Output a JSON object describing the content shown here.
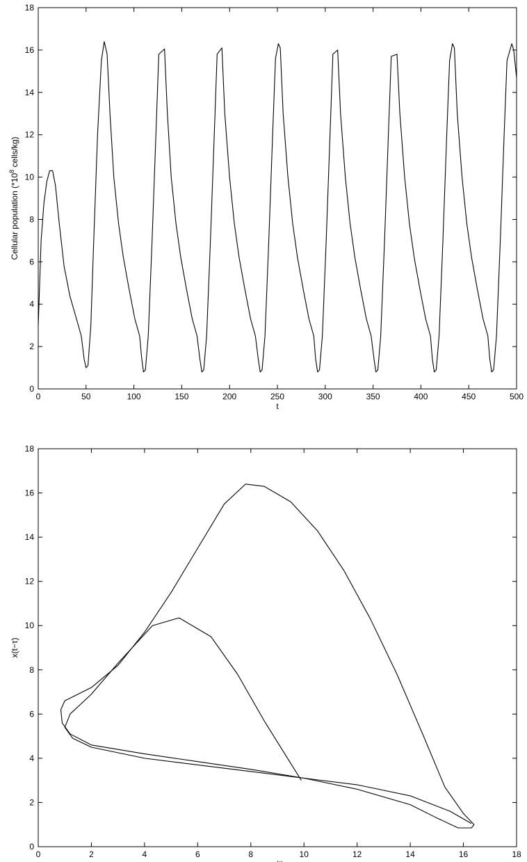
{
  "chart_data": [
    {
      "type": "line",
      "xlabel": "t",
      "ylabel_parts": [
        "Cellular population (*10",
        "8",
        " cells/kg)"
      ],
      "xlim": [
        0,
        500
      ],
      "ylim": [
        0,
        18
      ],
      "xticks": [
        0,
        50,
        100,
        150,
        200,
        250,
        300,
        350,
        400,
        450,
        500
      ],
      "yticks": [
        0,
        2,
        4,
        6,
        8,
        10,
        12,
        14,
        16,
        18
      ],
      "x": [
        0,
        3,
        6,
        9,
        12,
        15,
        18,
        22,
        27,
        33,
        40,
        45,
        48,
        50,
        52,
        55,
        58,
        62,
        66,
        69,
        72,
        75,
        79,
        84,
        89,
        95,
        101,
        106,
        108,
        110,
        112,
        115,
        119,
        123,
        126,
        132,
        135,
        139,
        144,
        149,
        155,
        161,
        166,
        169,
        171,
        173,
        176,
        180,
        184,
        187,
        192,
        195,
        200,
        205,
        210,
        216,
        222,
        227,
        230,
        232,
        234,
        237,
        241,
        245,
        248,
        251,
        253,
        256,
        261,
        266,
        271,
        277,
        283,
        288,
        290,
        292,
        294,
        297,
        301,
        305,
        308,
        313,
        316,
        321,
        326,
        331,
        337,
        343,
        348,
        351,
        353,
        355,
        358,
        362,
        366,
        369,
        375,
        378,
        383,
        388,
        393,
        399,
        405,
        410,
        412,
        414,
        416,
        419,
        423,
        427,
        430,
        433,
        435,
        438,
        443,
        448,
        453,
        459,
        465,
        470,
        472,
        474,
        476,
        479,
        483,
        487,
        490,
        495,
        497,
        500
      ],
      "series": [
        {
          "color": "#000000",
          "values": [
            3,
            7,
            8.8,
            9.8,
            10.3,
            10.3,
            9.6,
            7.8,
            5.8,
            4.4,
            3.3,
            2.5,
            1.4,
            1.0,
            1.1,
            3,
            7,
            12,
            15.5,
            16.4,
            15.8,
            13,
            10,
            7.8,
            6.2,
            4.7,
            3.3,
            2.5,
            1.5,
            0.8,
            0.9,
            2.5,
            7,
            12,
            15.8,
            16.05,
            13,
            10,
            7.8,
            6.2,
            4.7,
            3.3,
            2.5,
            1.4,
            0.8,
            0.9,
            2.5,
            7,
            12,
            15.8,
            16.1,
            13,
            10,
            7.8,
            6.2,
            4.7,
            3.3,
            2.5,
            1.4,
            0.8,
            0.9,
            2.5,
            7,
            12,
            15.6,
            16.3,
            16.1,
            13,
            10,
            7.8,
            6.2,
            4.7,
            3.3,
            2.5,
            1.4,
            0.8,
            0.9,
            2.5,
            7,
            12,
            15.8,
            16.0,
            13,
            10,
            7.8,
            6.2,
            4.7,
            3.3,
            2.5,
            1.4,
            0.8,
            0.9,
            2.5,
            7,
            12,
            15.7,
            15.8,
            13,
            10,
            7.8,
            6.2,
            4.7,
            3.3,
            2.5,
            1.4,
            0.8,
            0.9,
            2.5,
            7,
            12,
            15.5,
            16.3,
            16.1,
            13,
            10,
            7.8,
            6.2,
            4.7,
            3.3,
            2.5,
            1.4,
            0.8,
            0.9,
            2.5,
            7,
            12,
            15.5,
            16.3,
            16,
            14.7
          ]
        }
      ]
    },
    {
      "type": "line",
      "xlabel": "x(t)",
      "ylabel": "x(t−τ)",
      "xlim": [
        0,
        18
      ],
      "ylim": [
        0,
        18
      ],
      "xticks": [
        0,
        2,
        4,
        6,
        8,
        10,
        12,
        14,
        16,
        18
      ],
      "yticks": [
        0,
        2,
        4,
        6,
        8,
        10,
        12,
        14,
        16,
        18
      ],
      "series": [
        {
          "color": "#000000",
          "x": [
            9.9,
            8.5,
            7.5,
            6.5,
            5.3,
            4.3,
            3,
            2,
            1.2,
            1.0,
            1.3,
            2,
            4,
            6,
            8,
            10,
            12,
            14,
            15.5,
            16.3
          ],
          "values": [
            3.0,
            5.7,
            7.8,
            9.5,
            10.35,
            10.0,
            8.3,
            6.9,
            6.0,
            5.4,
            4.9,
            4.5,
            4.0,
            3.7,
            3.4,
            3.1,
            2.8,
            2.3,
            1.6,
            1.05
          ]
        },
        {
          "color": "#000000",
          "x": [
            0.85,
            1,
            2,
            3,
            4,
            5,
            6,
            7,
            7.8,
            8.5,
            9.5,
            10.5,
            11.5,
            12.5,
            13.5,
            14.5,
            15.3,
            16,
            16.4,
            16.3,
            15.8,
            15,
            14,
            12,
            10,
            8,
            6,
            4,
            2,
            1.2,
            0.9,
            0.85
          ],
          "values": [
            6.2,
            6.6,
            7.2,
            8.2,
            9.7,
            11.5,
            13.5,
            15.5,
            16.4,
            16.3,
            15.6,
            14.3,
            12.5,
            10.3,
            7.8,
            5.0,
            2.7,
            1.5,
            1.0,
            0.85,
            0.85,
            1.3,
            1.9,
            2.6,
            3.1,
            3.5,
            3.85,
            4.2,
            4.6,
            5.1,
            5.6,
            6.2
          ]
        }
      ]
    }
  ]
}
